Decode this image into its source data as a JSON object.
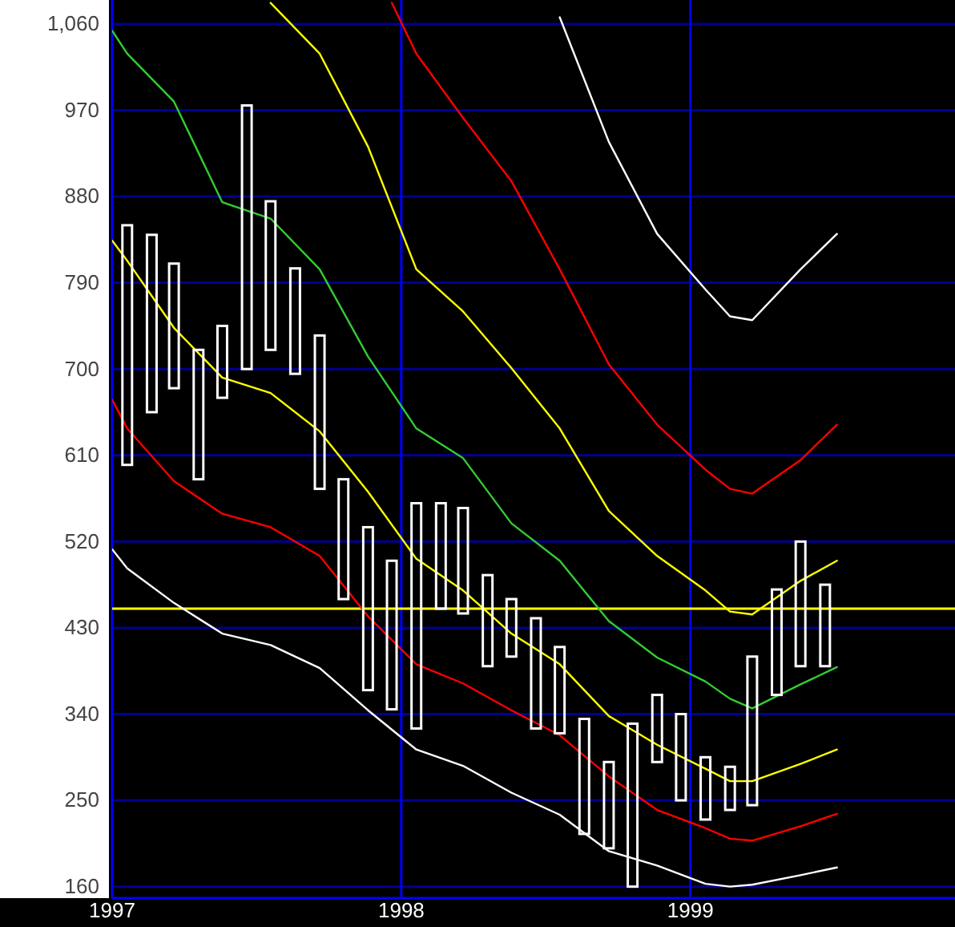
{
  "chart_data": {
    "type": "bar",
    "x": [
      "1997-01-20",
      "1997-02-20",
      "1997-03-20",
      "1997-04-20",
      "1997-05-20",
      "1997-06-20",
      "1997-07-20",
      "1997-08-20",
      "1997-09-20",
      "1997-10-20",
      "1997-11-20",
      "1997-12-20",
      "1998-01-20",
      "1998-02-20",
      "1998-03-20",
      "1998-04-20",
      "1998-05-20",
      "1998-06-20",
      "1998-07-20",
      "1998-08-20",
      "1998-09-20",
      "1998-10-20",
      "1998-11-20",
      "1998-12-20",
      "1999-01-20",
      "1999-02-20",
      "1999-03-20",
      "1999-04-20",
      "1999-05-20",
      "1999-06-20"
    ],
    "series": [
      {
        "color": "#ffffff",
        "base": [
          600,
          655,
          680,
          585,
          670,
          700,
          720,
          695,
          575,
          460,
          365,
          345,
          325,
          450,
          445,
          390,
          400,
          325,
          320,
          215,
          200,
          160,
          290,
          250,
          230,
          240,
          245,
          360,
          390,
          390
        ],
        "values": [
          250,
          185,
          130,
          135,
          75,
          275,
          155,
          110,
          160,
          125,
          170,
          155,
          235,
          110,
          110,
          95,
          60,
          115,
          90,
          120,
          90,
          170,
          70,
          90,
          65,
          45,
          155,
          110,
          130,
          85
        ]
      },
      {
        "type": "line",
        "color": "#ffffff",
        "x": [
          "1997-01-01",
          "1997-01-20",
          "1997-03-20",
          "1997-05-20",
          "1997-07-20",
          "1997-09-20",
          "1997-11-20",
          "1998-01-20",
          "1998-03-20",
          "1998-05-20",
          "1998-07-20",
          "1998-09-20",
          "1998-11-20",
          "1999-01-20",
          "1999-02-20",
          "1999-03-20",
          "1999-05-20",
          "1999-07-05"
        ],
        "values": [
          512,
          492,
          456,
          424,
          412,
          388,
          344,
          303,
          286,
          258,
          235,
          197,
          182,
          163,
          160,
          162,
          172,
          180
        ]
      },
      {
        "type": "line",
        "color": "#ff0000",
        "x": [
          "1997-01-01",
          "1997-01-20",
          "1997-03-20",
          "1997-05-20",
          "1997-07-20",
          "1997-09-20",
          "1997-11-20",
          "1998-01-20",
          "1998-03-20",
          "1998-05-20",
          "1998-07-20",
          "1998-09-20",
          "1998-11-20",
          "1999-01-20",
          "1999-02-20",
          "1999-03-20",
          "1999-05-20",
          "1999-07-05"
        ],
        "values": [
          668,
          638,
          583,
          549,
          535,
          505,
          442,
          392,
          372,
          344,
          318,
          275,
          240,
          221,
          210,
          208,
          223,
          236
        ]
      },
      {
        "type": "line",
        "color": "#ffff00",
        "x": [
          "1997-01-01",
          "1997-01-20",
          "1997-03-20",
          "1997-05-20",
          "1997-07-20",
          "1997-09-20",
          "1997-11-20",
          "1998-01-20",
          "1998-03-20",
          "1998-05-20",
          "1998-07-20",
          "1998-09-20",
          "1998-11-20",
          "1999-01-20",
          "1999-02-20",
          "1999-03-20",
          "1999-05-20",
          "1999-07-05"
        ],
        "values": [
          834,
          813,
          743,
          691,
          675,
          635,
          572,
          502,
          469,
          424,
          392,
          338,
          308,
          283,
          270,
          270,
          288,
          303
        ]
      },
      {
        "type": "line",
        "color": "#33cc33",
        "x": [
          "1997-01-01",
          "1997-01-20",
          "1997-03-20",
          "1997-05-20",
          "1997-07-20",
          "1997-09-20",
          "1997-11-20",
          "1998-01-20",
          "1998-03-20",
          "1998-05-20",
          "1998-07-20",
          "1998-09-20",
          "1998-11-20",
          "1999-01-20",
          "1999-02-20",
          "1999-03-20",
          "1999-05-20",
          "1999-07-05"
        ],
        "values": [
          1053,
          1029,
          979,
          874,
          857,
          804,
          713,
          638,
          607,
          539,
          500,
          437,
          399,
          374,
          356,
          346,
          371,
          389
        ]
      },
      {
        "type": "line",
        "color": "#ffff00",
        "x": [
          "1997-07-20",
          "1997-09-20",
          "1997-11-20",
          "1998-01-20",
          "1998-03-20",
          "1998-05-20",
          "1998-07-20",
          "1998-09-20",
          "1998-11-20",
          "1999-01-20",
          "1999-02-20",
          "1999-03-20",
          "1999-05-20",
          "1999-07-05"
        ],
        "values": [
          1082,
          1029,
          932,
          804,
          760,
          701,
          638,
          552,
          505,
          469,
          447,
          444,
          479,
          500
        ]
      },
      {
        "type": "line",
        "color": "#ff0000",
        "x": [
          "1997-12-20",
          "1998-01-20",
          "1998-03-20",
          "1998-05-20",
          "1998-07-20",
          "1998-09-20",
          "1998-11-20",
          "1999-01-20",
          "1999-02-20",
          "1999-03-20",
          "1999-05-20",
          "1999-07-05"
        ],
        "values": [
          1082,
          1029,
          962,
          896,
          804,
          705,
          642,
          595,
          575,
          570,
          605,
          642
        ]
      },
      {
        "type": "line",
        "color": "#ffffff",
        "x": [
          "1998-07-20",
          "1998-09-20",
          "1998-11-20",
          "1999-01-20",
          "1999-02-20",
          "1999-03-20",
          "1999-05-20",
          "1999-07-05"
        ],
        "values": [
          1067,
          937,
          841,
          783,
          755,
          751,
          804,
          841
        ]
      }
    ],
    "xlim": [
      "1997-01",
      "1999-12"
    ],
    "xticks": [
      {
        "value": "1997-01",
        "label": "1997"
      },
      {
        "value": "1998-01",
        "label": "1998"
      },
      {
        "value": "1999-01",
        "label": "1999"
      }
    ],
    "ylim": [
      148,
      1085
    ],
    "yticks": [
      160,
      250,
      340,
      430,
      520,
      610,
      700,
      790,
      880,
      970,
      {
        "value": 1060,
        "label": "1,060"
      }
    ],
    "grid": true,
    "ref_lines": [
      {
        "axis": "y",
        "value": 450,
        "color": "#ffff00"
      }
    ]
  }
}
